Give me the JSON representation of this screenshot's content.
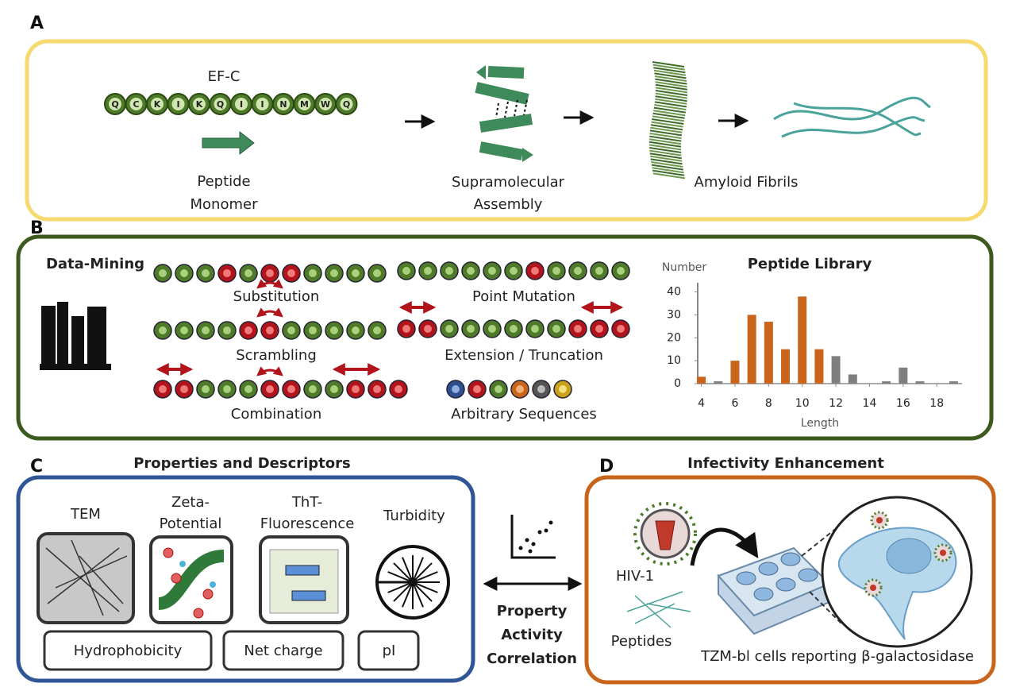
{
  "panel_a": {
    "letter": "A",
    "peptide_name": "EF-C",
    "sequence": [
      "Q",
      "C",
      "K",
      "I",
      "K",
      "Q",
      "I",
      "I",
      "N",
      "M",
      "W",
      "Q"
    ],
    "monomer_label": [
      "Peptide",
      "Monomer"
    ],
    "assembly_label": [
      "Supramolecular",
      "Assembly"
    ],
    "fibrils_label": "Amyloid Fibrils"
  },
  "panel_b": {
    "letter": "B",
    "data_mining": "Data-Mining",
    "methods": [
      "Substitution",
      "Point Mutation",
      "Scrambling",
      "Extension / Truncation",
      "Combination",
      "Arbitrary Sequences"
    ],
    "library_chart": {
      "type": "bar",
      "title": "Peptide Library",
      "ylabel": "Number",
      "xlabel": "Length",
      "x": [
        4,
        5,
        6,
        7,
        8,
        9,
        10,
        11,
        12,
        13,
        14,
        15,
        16,
        17,
        18,
        19
      ],
      "values": [
        3,
        1,
        10,
        30,
        27,
        15,
        38,
        15,
        12,
        4,
        0,
        1,
        7,
        1,
        0,
        1
      ],
      "colors": [
        "#c8651b",
        "#7f7f7f",
        "#c8651b",
        "#c8651b",
        "#c8651b",
        "#c8651b",
        "#c8651b",
        "#c8651b",
        "#7f7f7f",
        "#7f7f7f",
        "#7f7f7f",
        "#7f7f7f",
        "#7f7f7f",
        "#7f7f7f",
        "#7f7f7f",
        "#7f7f7f"
      ],
      "xlim": [
        3.5,
        19.5
      ],
      "xticks": [
        4,
        6,
        8,
        10,
        12,
        14,
        16,
        18
      ],
      "ylim": [
        0,
        44
      ],
      "yticks": [
        0,
        10,
        20,
        30,
        40
      ]
    }
  },
  "panel_c": {
    "letter": "C",
    "title": "Properties and Descriptors",
    "measures": [
      [
        "TEM"
      ],
      [
        "Zeta-",
        "Potential"
      ],
      [
        "ThT-",
        "Fluorescence"
      ],
      [
        "Turbidity"
      ]
    ],
    "descriptors": [
      "Hydrophobicity",
      "Net charge",
      "pI"
    ]
  },
  "correlation": [
    "Property",
    "Activity",
    "Correlation"
  ],
  "panel_d": {
    "letter": "D",
    "title": "Infectivity Enhancement",
    "virus": "HIV-1",
    "peptides": "Peptides",
    "cells": "TZM-bl cells reporting β-galactosidase"
  }
}
